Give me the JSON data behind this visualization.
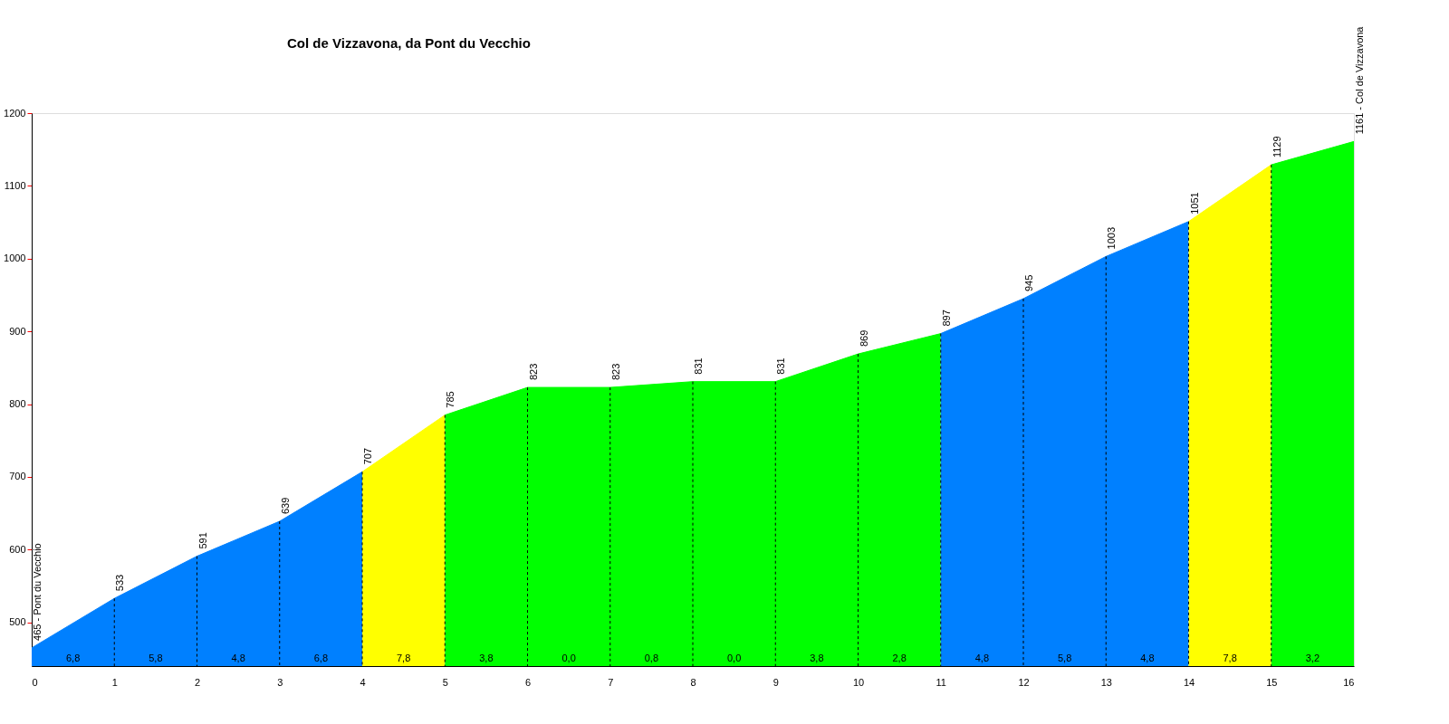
{
  "chart_data": {
    "type": "area",
    "title": "Col de Vizzavona, da Pont du Vecchio",
    "series": [
      {
        "color": "#0080ff",
        "x": [
          0,
          1,
          2,
          3,
          4
        ],
        "values": [
          465,
          533,
          591,
          639,
          707
        ],
        "value_labels": [
          "465 - Pont du Vecchio",
          "533",
          "591",
          "639",
          "707"
        ]
      },
      {
        "color": "#ffff00",
        "x": [
          4,
          5
        ],
        "values": [
          707,
          785
        ],
        "value_labels": [
          null,
          "785"
        ]
      },
      {
        "color": "#00ff00",
        "x": [
          5,
          6,
          7,
          8,
          9,
          10,
          11
        ],
        "values": [
          785,
          823,
          823,
          831,
          831,
          869,
          897
        ],
        "value_labels": [
          null,
          "823",
          "823",
          "831",
          "831",
          "869",
          "897"
        ]
      },
      {
        "color": "#0080ff",
        "x": [
          11,
          12,
          13,
          14
        ],
        "values": [
          897,
          945,
          1003,
          1051
        ],
        "value_labels": [
          null,
          "945",
          "1003",
          "1051"
        ]
      },
      {
        "color": "#ffff00",
        "x": [
          14,
          15
        ],
        "values": [
          1051,
          1129
        ],
        "value_labels": [
          null,
          "1129"
        ]
      },
      {
        "color": "#00ff00",
        "x": [
          15,
          16
        ],
        "values": [
          1129,
          1161
        ],
        "value_labels": [
          null,
          "1161 - Col de Vizzavona"
        ]
      }
    ],
    "annotations": [
      "6,8",
      "5,8",
      "4,8",
      "6,8",
      "7,8",
      "3,8",
      "0,0",
      "0,8",
      "0,0",
      "3,8",
      "2,8",
      "4,8",
      "5,8",
      "4,8",
      "7,8",
      "3,2"
    ],
    "xlim": [
      0,
      16
    ],
    "xticks": [
      0,
      1,
      2,
      3,
      4,
      5,
      6,
      7,
      8,
      9,
      10,
      11,
      12,
      13,
      14,
      15,
      16
    ],
    "ylim": [
      440,
      1200
    ],
    "yticks": [
      500,
      600,
      700,
      800,
      900,
      1000,
      1100,
      1200
    ],
    "grid": "x",
    "legend": false
  }
}
